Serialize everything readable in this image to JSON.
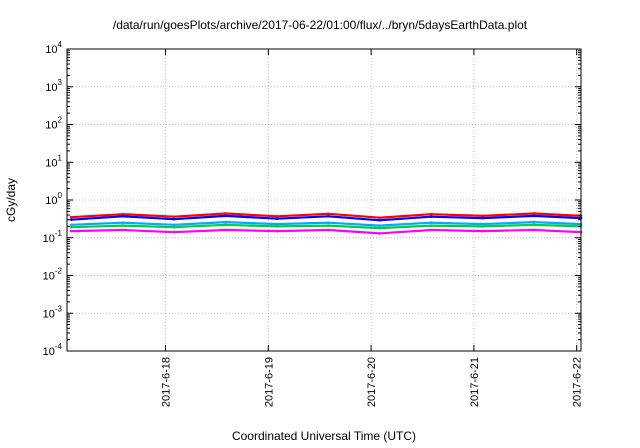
{
  "chart_data": {
    "type": "line",
    "title": "/data/run/goesPlots/archive/2017-06-22/01:00/flux/../bryn/5daysEarthData.plot",
    "xlabel": "Coordinated Universal Time (UTC)",
    "ylabel": "cGy/day",
    "y_scale": "log",
    "ylim": [
      0.0001,
      10000
    ],
    "xlim": [
      "2017-06-17 01:00",
      "2017-06-22 01:00"
    ],
    "grid": true,
    "legend": "none",
    "x_ticks": [
      {
        "x": "2017-06-18",
        "label": "2017-6-18"
      },
      {
        "x": "2017-06-19",
        "label": "2017-6-19"
      },
      {
        "x": "2017-06-20",
        "label": "2017-6-20"
      },
      {
        "x": "2017-06-21",
        "label": "2017-6-21"
      },
      {
        "x": "2017-06-22",
        "label": "2017-6-22"
      }
    ],
    "y_ticks": [
      {
        "value": 0.0001,
        "base": "10",
        "exp": "-4"
      },
      {
        "value": 0.001,
        "base": "10",
        "exp": "-3"
      },
      {
        "value": 0.01,
        "base": "10",
        "exp": "-2"
      },
      {
        "value": 0.1,
        "base": "10",
        "exp": "-1"
      },
      {
        "value": 1,
        "base": "10",
        "exp": "0"
      },
      {
        "value": 10,
        "base": "10",
        "exp": "1"
      },
      {
        "value": 100,
        "base": "10",
        "exp": "2"
      },
      {
        "value": 1000,
        "base": "10",
        "exp": "3"
      },
      {
        "value": 10000,
        "base": "10",
        "exp": "4"
      }
    ],
    "series": [
      {
        "color": "#ff0000",
        "x": [
          "2017-06-17 02:00",
          "2017-06-17 14:00",
          "2017-06-18 02:00",
          "2017-06-18 14:00",
          "2017-06-19 02:00",
          "2017-06-19 14:00",
          "2017-06-20 02:00",
          "2017-06-20 14:00",
          "2017-06-21 02:00",
          "2017-06-21 14:00",
          "2017-06-22 01:00"
        ],
        "values": [
          0.35,
          0.42,
          0.36,
          0.44,
          0.37,
          0.43,
          0.34,
          0.42,
          0.38,
          0.44,
          0.38
        ]
      },
      {
        "color": "#0000ff",
        "x": [
          "2017-06-17 02:00",
          "2017-06-17 14:00",
          "2017-06-18 02:00",
          "2017-06-18 14:00",
          "2017-06-19 02:00",
          "2017-06-19 14:00",
          "2017-06-20 02:00",
          "2017-06-20 14:00",
          "2017-06-21 02:00",
          "2017-06-21 14:00",
          "2017-06-22 01:00"
        ],
        "values": [
          0.3,
          0.37,
          0.31,
          0.38,
          0.32,
          0.37,
          0.29,
          0.36,
          0.33,
          0.38,
          0.33
        ]
      },
      {
        "color": "#00aaff",
        "x": [
          "2017-06-17 02:00",
          "2017-06-17 14:00",
          "2017-06-18 02:00",
          "2017-06-18 14:00",
          "2017-06-19 02:00",
          "2017-06-19 14:00",
          "2017-06-20 02:00",
          "2017-06-20 14:00",
          "2017-06-21 02:00",
          "2017-06-21 14:00",
          "2017-06-22 01:00"
        ],
        "values": [
          0.22,
          0.25,
          0.22,
          0.26,
          0.23,
          0.25,
          0.21,
          0.25,
          0.23,
          0.26,
          0.23
        ]
      },
      {
        "color": "#00cc44",
        "x": [
          "2017-06-17 02:00",
          "2017-06-17 14:00",
          "2017-06-18 02:00",
          "2017-06-18 14:00",
          "2017-06-19 02:00",
          "2017-06-19 14:00",
          "2017-06-20 02:00",
          "2017-06-20 14:00",
          "2017-06-21 02:00",
          "2017-06-21 14:00",
          "2017-06-22 01:00"
        ],
        "values": [
          0.19,
          0.21,
          0.19,
          0.22,
          0.2,
          0.21,
          0.18,
          0.21,
          0.2,
          0.22,
          0.2
        ]
      },
      {
        "color": "#ff00ff",
        "x": [
          "2017-06-17 02:00",
          "2017-06-17 14:00",
          "2017-06-18 02:00",
          "2017-06-18 14:00",
          "2017-06-19 02:00",
          "2017-06-19 14:00",
          "2017-06-20 02:00",
          "2017-06-20 14:00",
          "2017-06-21 02:00",
          "2017-06-21 14:00",
          "2017-06-22 01:00"
        ],
        "values": [
          0.15,
          0.16,
          0.14,
          0.16,
          0.15,
          0.16,
          0.13,
          0.16,
          0.15,
          0.16,
          0.14
        ]
      }
    ]
  }
}
